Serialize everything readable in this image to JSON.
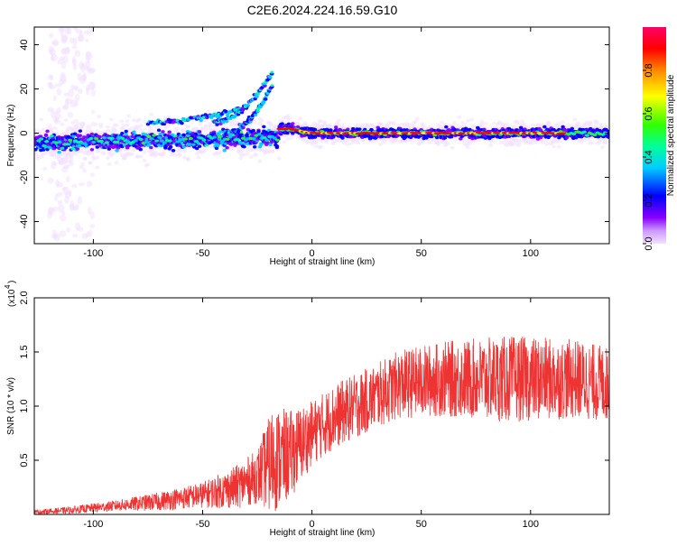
{
  "title": "C2E6.2024.224.16.59.G10",
  "chart_data": [
    {
      "type": "heatmap",
      "xlabel": "Height of straight line (km)",
      "ylabel": "Frequency (Hz)",
      "xlim": [
        -127,
        136
      ],
      "ylim": [
        -50,
        48
      ],
      "xticks": [
        -100,
        -50,
        0,
        50,
        100
      ],
      "yticks": [
        40,
        20,
        0,
        -20,
        -40
      ],
      "ytick_labels": [
        "40",
        "20",
        "0",
        "-20",
        "-40"
      ],
      "colorbar": {
        "label": "Normalized spectral amplitude",
        "range": [
          0,
          1
        ],
        "ticks": [
          0.0,
          0.2,
          0.4,
          0.6,
          0.8
        ],
        "tick_labels": [
          "0.0",
          "0.2",
          "0.4",
          "0.6",
          "0.8"
        ],
        "colors": [
          "#f2e0ff",
          "#8800ff",
          "#0000ff",
          "#00ffff",
          "#00ff00",
          "#ffff00",
          "#ff8800",
          "#ff0000",
          "#ff0066"
        ]
      },
      "main_trace_color_levels": "dense band near 0 Hz; high amplitude (red) from about -15 km to 115 km",
      "grid": false
    },
    {
      "type": "line",
      "xlabel": "Height of straight line (km)",
      "ylabel": "SNR (10 * v/v)",
      "y_multiplier_label": "(x10",
      "y_multiplier_exp": "4",
      "xlim": [
        -127,
        136
      ],
      "ylim": [
        0.0,
        2.0
      ],
      "xticks": [
        -100,
        -50,
        0,
        50,
        100
      ],
      "yticks": [
        0.5,
        1.0,
        1.5,
        2.0
      ],
      "ytick_labels": [
        "0.5",
        "1.0",
        "1.5",
        "2.0"
      ],
      "series": [
        {
          "color": "#ee3333",
          "envelope_mean": [
            [
              -127,
              0.02
            ],
            [
              -110,
              0.04
            ],
            [
              -90,
              0.08
            ],
            [
              -70,
              0.12
            ],
            [
              -50,
              0.18
            ],
            [
              -35,
              0.25
            ],
            [
              -25,
              0.35
            ],
            [
              -18,
              0.5
            ],
            [
              -10,
              0.55
            ],
            [
              0,
              0.75
            ],
            [
              10,
              0.9
            ],
            [
              20,
              1.0
            ],
            [
              30,
              1.1
            ],
            [
              40,
              1.2
            ],
            [
              60,
              1.25
            ],
            [
              80,
              1.25
            ],
            [
              100,
              1.25
            ],
            [
              120,
              1.25
            ],
            [
              136,
              1.2
            ]
          ],
          "envelope_spread": [
            [
              -127,
              0.02
            ],
            [
              -90,
              0.05
            ],
            [
              -50,
              0.12
            ],
            [
              -25,
              0.25
            ],
            [
              -18,
              0.5
            ],
            [
              0,
              0.3
            ],
            [
              30,
              0.3
            ],
            [
              60,
              0.35
            ],
            [
              90,
              0.4
            ],
            [
              136,
              0.35
            ]
          ]
        }
      ],
      "grid": false
    }
  ]
}
